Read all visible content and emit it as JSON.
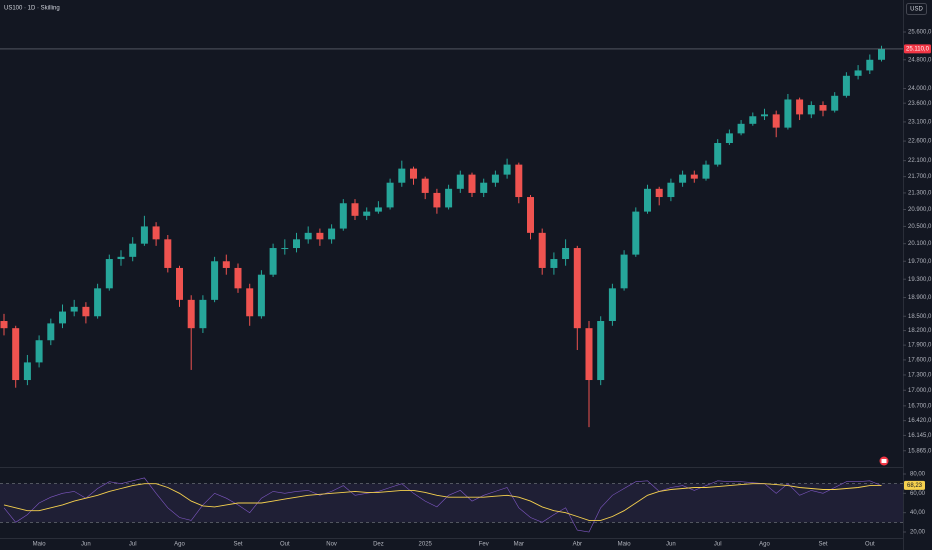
{
  "chart_data": [
    {
      "type": "candlestick",
      "title": "US100 · 1D · Skilling",
      "currency": "USD",
      "categories": [
        null,
        null,
        null,
        "Maio",
        null,
        null,
        null,
        "Jun",
        null,
        null,
        null,
        "Jul",
        null,
        null,
        null,
        "Ago",
        null,
        null,
        null,
        null,
        "Set",
        null,
        null,
        null,
        "Out",
        null,
        null,
        null,
        "Nov",
        null,
        null,
        null,
        "Dez",
        null,
        null,
        null,
        "2025",
        null,
        null,
        null,
        null,
        "Fev",
        null,
        null,
        "Mar",
        null,
        null,
        null,
        null,
        "Abr",
        null,
        null,
        null,
        "Maio",
        null,
        null,
        null,
        "Jun",
        null,
        null,
        null,
        "Jul",
        null,
        null,
        null,
        "Ago",
        null,
        null,
        null,
        null,
        "Set",
        null,
        null,
        null,
        "Out",
        null
      ],
      "open": [
        18400,
        18250,
        17200,
        17550,
        18000,
        18350,
        18600,
        18700,
        18500,
        19100,
        19750,
        19800,
        20100,
        20500,
        20200,
        19550,
        18850,
        18250,
        18850,
        19700,
        19550,
        19100,
        18500,
        19400,
        20000,
        20000,
        20200,
        20350,
        20200,
        20450,
        21050,
        20750,
        20850,
        20950,
        21550,
        21900,
        21650,
        21300,
        20950,
        21400,
        21750,
        21300,
        21550,
        21750,
        22000,
        21200,
        20350,
        19550,
        19750,
        20000,
        18250,
        17200,
        18400,
        19100,
        19850,
        20850,
        21400,
        21200,
        21550,
        21750,
        21650,
        22000,
        22550,
        22800,
        23050,
        23250,
        23300,
        22950,
        23700,
        23300,
        23550,
        23400,
        23800,
        24350,
        24500,
        24800
      ],
      "high": [
        18550,
        18300,
        17700,
        18100,
        18450,
        18750,
        18850,
        18800,
        19200,
        19850,
        19950,
        20250,
        20750,
        20600,
        20300,
        19600,
        18950,
        18950,
        19800,
        19850,
        19650,
        19200,
        19500,
        20100,
        20200,
        20350,
        20500,
        20450,
        20550,
        21150,
        21150,
        20950,
        21100,
        21650,
        22100,
        21950,
        21700,
        21400,
        21500,
        21850,
        21800,
        21650,
        21850,
        22150,
        22050,
        21250,
        20450,
        19900,
        20200,
        20050,
        18400,
        18500,
        19200,
        19950,
        20950,
        21500,
        21450,
        21650,
        21850,
        21850,
        22100,
        22650,
        22900,
        23150,
        23350,
        23450,
        23400,
        23850,
        23750,
        23650,
        23650,
        23900,
        24450,
        24650,
        24950,
        25200
      ],
      "low": [
        18100,
        17050,
        17100,
        17450,
        17900,
        18250,
        18500,
        18350,
        18450,
        19050,
        19600,
        19700,
        20050,
        20050,
        19450,
        18700,
        17400,
        18150,
        18800,
        19400,
        19000,
        18300,
        18450,
        19350,
        19850,
        19900,
        20100,
        20050,
        20100,
        20400,
        20650,
        20650,
        20800,
        20900,
        21450,
        21500,
        21150,
        20800,
        20900,
        21300,
        21200,
        21200,
        21450,
        21650,
        21050,
        20200,
        19400,
        19400,
        19600,
        17800,
        16300,
        17100,
        18300,
        19050,
        19800,
        20800,
        21000,
        21100,
        21450,
        21550,
        21600,
        21950,
        22500,
        22750,
        23000,
        23150,
        22700,
        22900,
        23150,
        23200,
        23250,
        23350,
        23750,
        24250,
        24400,
        24750
      ],
      "close": [
        18250,
        17200,
        17550,
        18000,
        18350,
        18600,
        18700,
        18500,
        19100,
        19750,
        19800,
        20100,
        20500,
        20200,
        19550,
        18850,
        18250,
        18850,
        19700,
        19550,
        19100,
        18500,
        19400,
        20000,
        20000,
        20200,
        20350,
        20200,
        20450,
        21050,
        20750,
        20850,
        20950,
        21550,
        21900,
        21650,
        21300,
        20950,
        21400,
        21750,
        21300,
        21550,
        21750,
        22000,
        21200,
        20350,
        19550,
        19750,
        20000,
        18250,
        17200,
        18400,
        19100,
        19850,
        20850,
        21400,
        21200,
        21550,
        21750,
        21650,
        22000,
        22550,
        22800,
        23050,
        23250,
        23300,
        22950,
        23700,
        23300,
        23550,
        23400,
        23800,
        24350,
        24500,
        24800,
        25110
      ],
      "up_color": "#26a69a",
      "down_color": "#ef5350",
      "log_scale": true,
      "ylim": [
        15573,
        26553
      ],
      "yticks": [
        {
          "value": 25600,
          "label": "25.600,0"
        },
        {
          "value": 24800,
          "label": "24.800,0"
        },
        {
          "value": 24000,
          "label": "24.000,0"
        },
        {
          "value": 23600,
          "label": "23.600,0"
        },
        {
          "value": 23100,
          "label": "23.100,0"
        },
        {
          "value": 22600,
          "label": "22.600,0"
        },
        {
          "value": 22100,
          "label": "22.100,0"
        },
        {
          "value": 21700,
          "label": "21.700,0"
        },
        {
          "value": 21300,
          "label": "21.300,0"
        },
        {
          "value": 20900,
          "label": "20.900,0"
        },
        {
          "value": 20500,
          "label": "20.500,0"
        },
        {
          "value": 20100,
          "label": "20.100,0"
        },
        {
          "value": 19700,
          "label": "19.700,0"
        },
        {
          "value": 19300,
          "label": "19.300,0"
        },
        {
          "value": 18900,
          "label": "18.900,0"
        },
        {
          "value": 18500,
          "label": "18.500,0"
        },
        {
          "value": 18200,
          "label": "18.200,0"
        },
        {
          "value": 17900,
          "label": "17.900,0"
        },
        {
          "value": 17600,
          "label": "17.600,0"
        },
        {
          "value": 17300,
          "label": "17.300,0"
        },
        {
          "value": 17000,
          "label": "17.000,0"
        },
        {
          "value": 16700,
          "label": "16.700,0"
        },
        {
          "value": 16420,
          "label": "16.420,0"
        },
        {
          "value": 16145,
          "label": "16.145,0"
        },
        {
          "value": 15865,
          "label": "15.865,0"
        }
      ],
      "price_tag": {
        "value": 25110,
        "label": "25.110,0",
        "color": "#f23645"
      }
    },
    {
      "type": "rsi",
      "series": [
        {
          "color": "#7e57c2",
          "values": [
            45,
            30,
            38,
            50,
            56,
            60,
            62,
            55,
            65,
            72,
            70,
            73,
            76,
            60,
            45,
            35,
            32,
            48,
            60,
            55,
            48,
            40,
            55,
            62,
            60,
            62,
            63,
            58,
            62,
            68,
            58,
            60,
            62,
            66,
            70,
            60,
            52,
            46,
            58,
            63,
            52,
            58,
            62,
            66,
            45,
            35,
            30,
            38,
            45,
            22,
            20,
            45,
            58,
            65,
            72,
            73,
            62,
            66,
            68,
            63,
            68,
            73,
            72,
            72,
            71,
            70,
            60,
            70,
            58,
            63,
            60,
            66,
            72,
            72,
            73,
            68
          ]
        },
        {
          "color": "#f5d04e",
          "values": [
            48,
            45,
            42,
            42,
            45,
            48,
            52,
            55,
            58,
            62,
            65,
            68,
            70,
            70,
            66,
            60,
            52,
            47,
            46,
            48,
            50,
            50,
            50,
            52,
            54,
            56,
            58,
            59,
            60,
            61,
            62,
            61,
            61,
            62,
            63,
            63,
            61,
            58,
            56,
            56,
            56,
            56,
            57,
            58,
            56,
            52,
            46,
            42,
            40,
            36,
            32,
            32,
            36,
            42,
            50,
            58,
            62,
            64,
            65,
            66,
            66,
            67,
            68,
            69,
            70,
            70,
            69,
            68,
            66,
            65,
            64,
            64,
            65,
            66,
            68,
            68.23
          ]
        }
      ],
      "band": [
        30,
        70
      ],
      "band_color": "#7e57c2",
      "ylim": [
        13.8,
        86.2
      ],
      "yticks": [
        {
          "value": 80,
          "label": "80,00"
        },
        {
          "value": 60,
          "label": "60,00"
        },
        {
          "value": 40,
          "label": "40,00"
        },
        {
          "value": 20,
          "label": "20,00"
        }
      ],
      "tag": {
        "value": 68.23,
        "label": "68,23",
        "color": "#f5d04e"
      }
    }
  ]
}
